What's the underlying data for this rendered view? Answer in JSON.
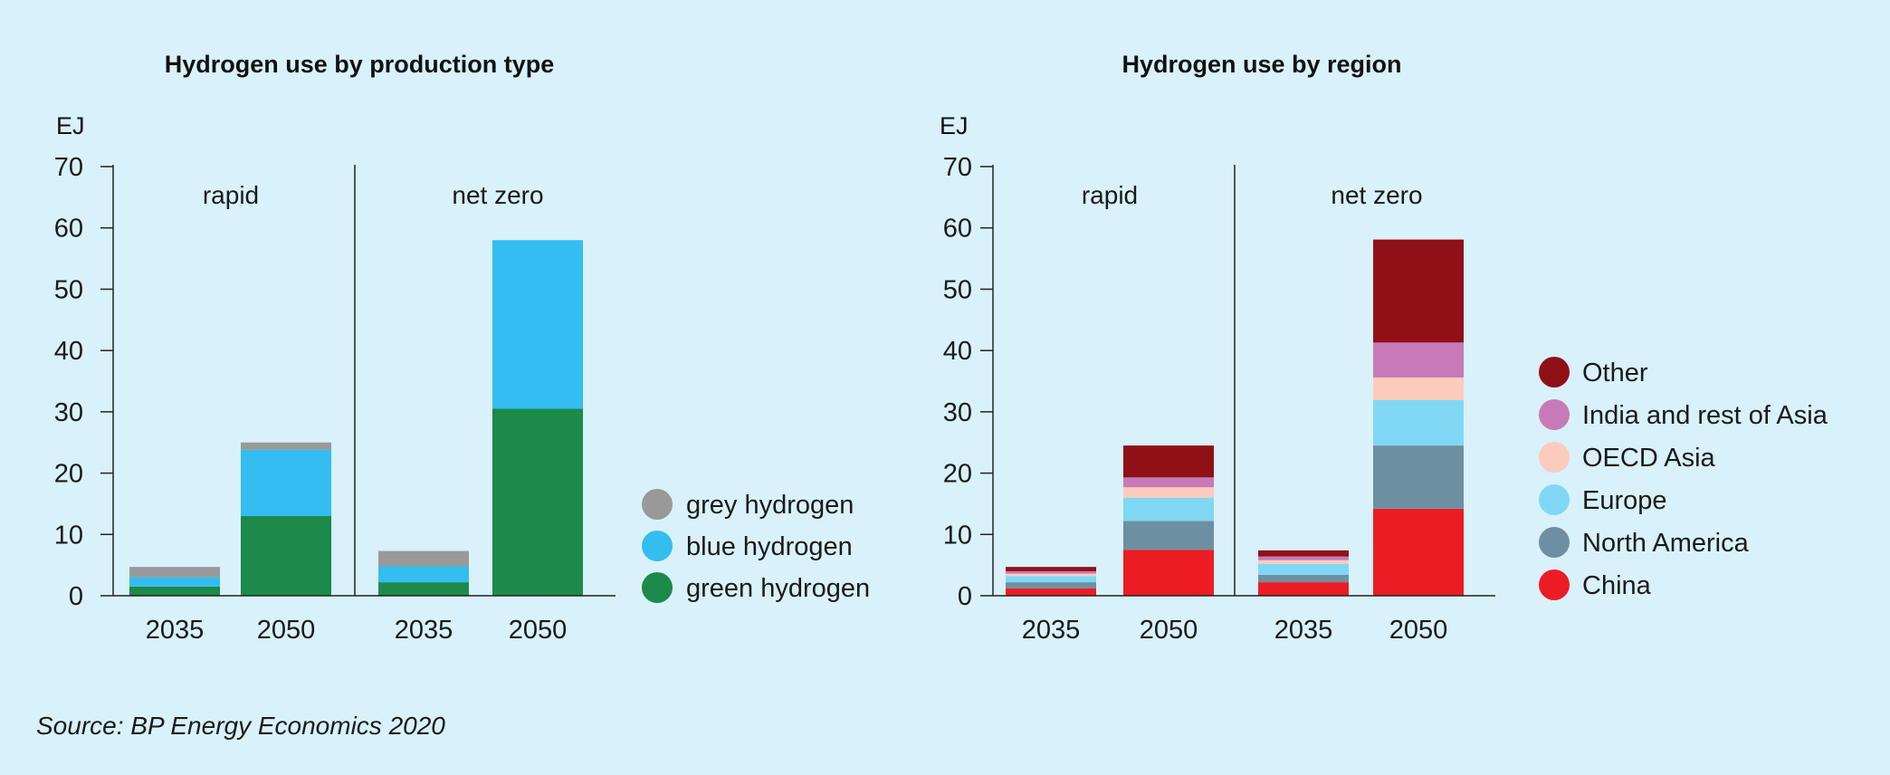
{
  "source": "Source: BP Energy Economics 2020",
  "colors": {
    "axis": "#222222",
    "grey hydrogen": "#999999",
    "blue hydrogen": "#33bdf0",
    "green hydrogen": "#1b8a4a",
    "China": "#ec1c24",
    "North America": "#6e8fa2",
    "Europe": "#80d7f4",
    "OECD Asia": "#fdcbbd",
    "India and rest of Asia": "#c87ab8",
    "Other": "#901018"
  },
  "chart_data": [
    {
      "type": "bar",
      "stacked": true,
      "title": "Hydrogen use by production type",
      "ylabel": "EJ",
      "ylim": [
        0,
        70
      ],
      "yticks": [
        0,
        10,
        20,
        30,
        40,
        50,
        60,
        70
      ],
      "groups": [
        {
          "label": "rapid",
          "categories": [
            "2035",
            "2050"
          ]
        },
        {
          "label": "net zero",
          "categories": [
            "2035",
            "2050"
          ]
        }
      ],
      "series": [
        {
          "name": "green hydrogen",
          "values": [
            1.5,
            13,
            2.2,
            30.5
          ]
        },
        {
          "name": "blue hydrogen",
          "values": [
            1.5,
            10.8,
            2.6,
            27.5
          ]
        },
        {
          "name": "grey hydrogen",
          "values": [
            1.7,
            1.2,
            2.5,
            0
          ]
        }
      ],
      "legend": [
        "grey hydrogen",
        "blue hydrogen",
        "green hydrogen"
      ],
      "legend_position": "right"
    },
    {
      "type": "bar",
      "stacked": true,
      "title": "Hydrogen use by region",
      "ylabel": "EJ",
      "ylim": [
        0,
        70
      ],
      "yticks": [
        0,
        10,
        20,
        30,
        40,
        50,
        60,
        70
      ],
      "groups": [
        {
          "label": "rapid",
          "categories": [
            "2035",
            "2050"
          ]
        },
        {
          "label": "net zero",
          "categories": [
            "2035",
            "2050"
          ]
        }
      ],
      "series": [
        {
          "name": "China",
          "values": [
            1.2,
            7.5,
            2.2,
            14.2
          ]
        },
        {
          "name": "North America",
          "values": [
            1.0,
            4.7,
            1.2,
            10.3
          ]
        },
        {
          "name": "Europe",
          "values": [
            1.0,
            3.8,
            1.8,
            7.4
          ]
        },
        {
          "name": "OECD Asia",
          "values": [
            0.4,
            1.7,
            0.6,
            3.7
          ]
        },
        {
          "name": "India and rest of Asia",
          "values": [
            0.4,
            1.6,
            0.6,
            5.7
          ]
        },
        {
          "name": "Other",
          "values": [
            0.7,
            5.2,
            1.0,
            16.8
          ]
        }
      ],
      "legend": [
        "Other",
        "India and rest of Asia",
        "OECD Asia",
        "Europe",
        "North America",
        "China"
      ],
      "legend_position": "right"
    }
  ]
}
